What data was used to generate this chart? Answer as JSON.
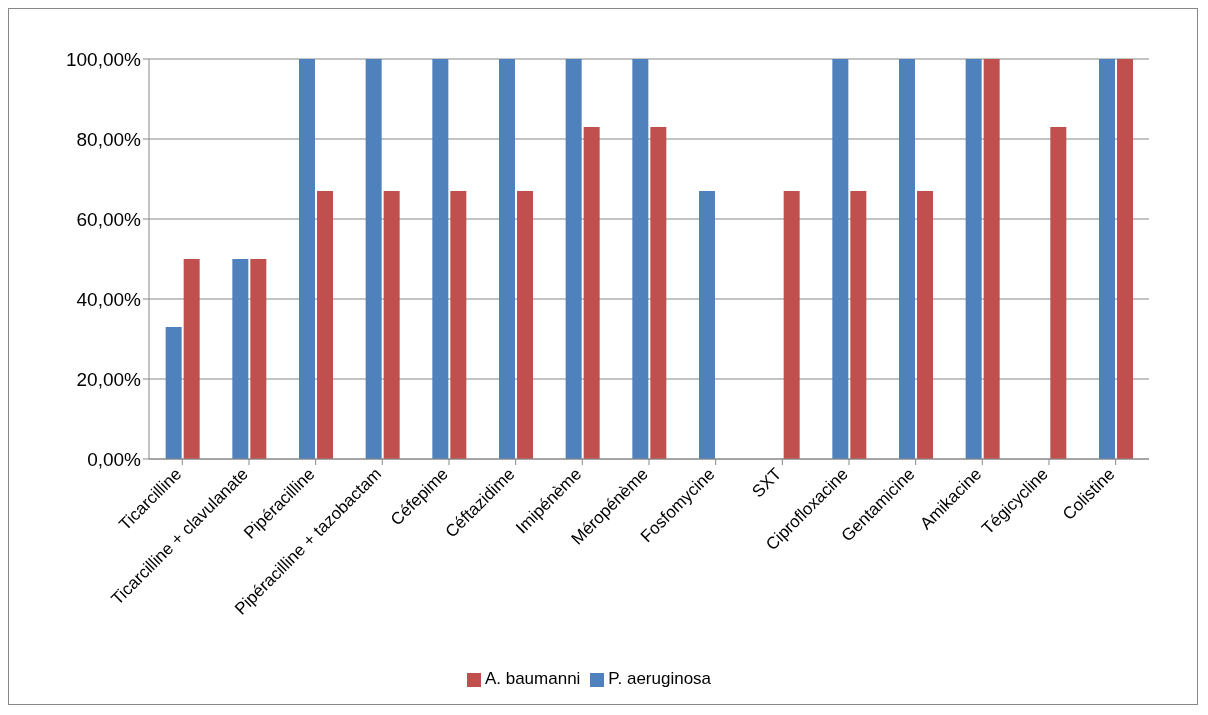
{
  "chart_data": {
    "type": "bar",
    "categories": [
      "Ticarcilline",
      "Ticarcilline + clavulanate",
      "Pipéracilline",
      "Pipéracilline + tazobactam",
      "Céfepime",
      "Céftazidime",
      "Imipénème",
      "Méropénème",
      "Fosfomycine",
      "SXT",
      "Ciprofloxacine",
      "Gentamicine",
      "Amikacine",
      "Tégicycline",
      "Colistine"
    ],
    "series": [
      {
        "name": "P. aeruginosa",
        "color": "#4f81bd",
        "values": [
          33,
          50,
          100,
          100,
          100,
          100,
          100,
          100,
          67,
          0,
          100,
          100,
          100,
          0,
          100
        ]
      },
      {
        "name": "A. baumanni",
        "color": "#c0504d",
        "values": [
          50,
          50,
          67,
          67,
          67,
          67,
          83,
          83,
          0,
          67,
          67,
          67,
          100,
          83,
          100
        ]
      }
    ],
    "ylim": [
      0,
      100
    ],
    "yticks": [
      {
        "value": 0,
        "label": "0,00%"
      },
      {
        "value": 20,
        "label": "20,00%"
      },
      {
        "value": 40,
        "label": "40,00%"
      },
      {
        "value": 60,
        "label": "60,00%"
      },
      {
        "value": 80,
        "label": "80,00%"
      },
      {
        "value": 100,
        "label": "100,00%"
      }
    ],
    "grid": "y",
    "legend": "bottom"
  }
}
